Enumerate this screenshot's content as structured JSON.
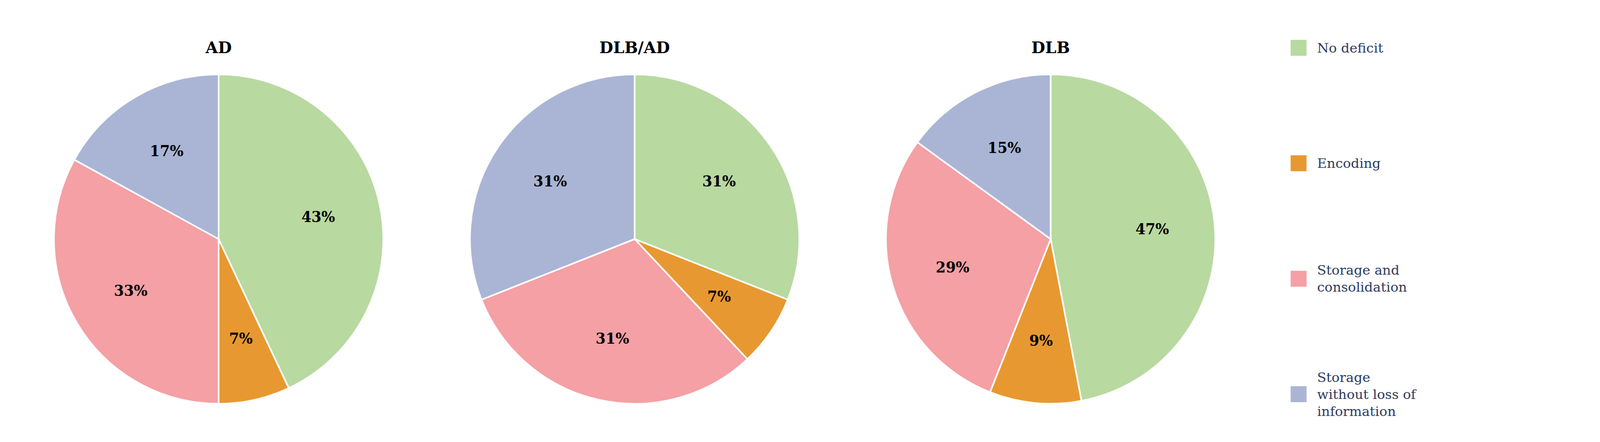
{
  "chart_data": [
    {
      "type": "pie",
      "title": "AD",
      "categories": [
        "No deficit",
        "Encoding",
        "Storage and\nconsolidation",
        "Storage\nwithout loss of\ninformation"
      ],
      "values": [
        43,
        7,
        33,
        17
      ],
      "value_labels": [
        "43%",
        "7%",
        "33%",
        "17%"
      ],
      "data_labels": true,
      "colors": [
        "#b8d9a0",
        "#e89830",
        "#f4a0a5",
        "#aab5d5"
      ],
      "legend": "right"
    },
    {
      "type": "pie",
      "title": "DLB/AD",
      "values": [
        31,
        7,
        31,
        31
      ],
      "value_labels": [
        "31%",
        "7%",
        "31%",
        "31%"
      ],
      "data_labels": true,
      "colors": [
        "#b8d9a0",
        "#e89830",
        "#f4a0a5",
        "#aab5d5"
      ]
    },
    {
      "type": "pie",
      "title": "DLB",
      "values": [
        47,
        9,
        29,
        15
      ],
      "value_labels": [
        "47%",
        "9%",
        "29%",
        "15%"
      ],
      "data_labels": true,
      "colors": [
        "#b8d9a0",
        "#e89830",
        "#f4a0a5",
        "#aab5d5"
      ]
    }
  ]
}
